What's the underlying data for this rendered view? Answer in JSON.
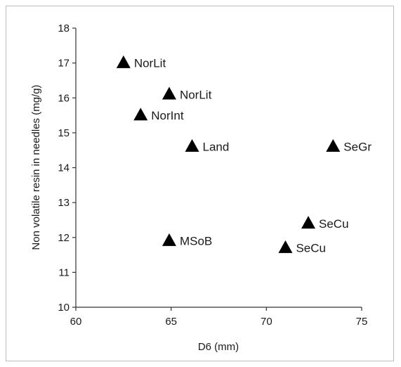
{
  "chart_data": {
    "type": "scatter",
    "title": "",
    "xlabel": "D6 (mm)",
    "ylabel": "Non volatile resin in needles (mg/g)",
    "xlim": [
      60,
      75
    ],
    "ylim": [
      10,
      18
    ],
    "x_ticks": [
      60,
      65,
      70,
      75
    ],
    "y_ticks": [
      10,
      11,
      12,
      13,
      14,
      15,
      16,
      17,
      18
    ],
    "grid": false,
    "legend": "none",
    "marker": "triangle",
    "marker_color": "#000000",
    "points": [
      {
        "label": "NorLit",
        "x": 62.5,
        "y": 17.0
      },
      {
        "label": "NorLit",
        "x": 64.9,
        "y": 16.1
      },
      {
        "label": "NorInt",
        "x": 63.4,
        "y": 15.5
      },
      {
        "label": "Land",
        "x": 66.1,
        "y": 14.6
      },
      {
        "label": "SeGr",
        "x": 73.5,
        "y": 14.6
      },
      {
        "label": "SeCu",
        "x": 72.2,
        "y": 12.4
      },
      {
        "label": "MSoB",
        "x": 64.9,
        "y": 11.9
      },
      {
        "label": "SeCu",
        "x": 71.0,
        "y": 11.7
      }
    ]
  }
}
